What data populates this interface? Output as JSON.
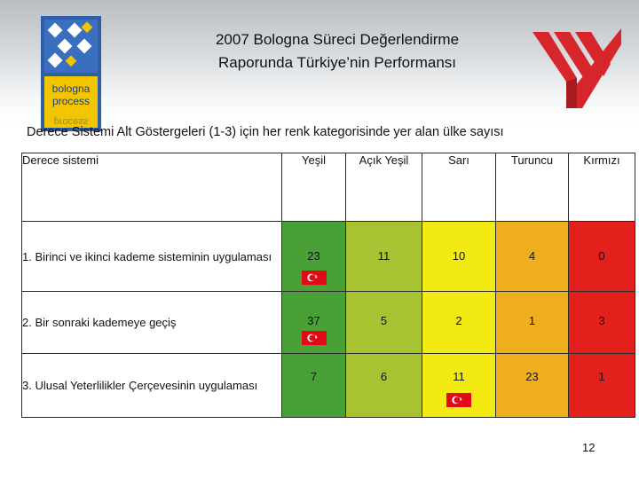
{
  "slide": {
    "title_line1": "2007 Bologna Süreci Değerlendirme",
    "title_line2": "Raporunda Türkiye’nin Performansı",
    "subtitle": "Derece Sistemi Alt Göstergeleri (1-3) için her renk kategorisinde yer alan ülke sayısı",
    "page_number": "12"
  },
  "logos": {
    "bologna_text": [
      "bologna",
      "process"
    ],
    "yok_logo_color": "#d6262b"
  },
  "table": {
    "corner_header": "Derece sistemi",
    "columns": [
      {
        "label": "Yeşil",
        "color": "#49a037"
      },
      {
        "label": "Açık Yeşil",
        "color": "#a7c332"
      },
      {
        "label": "Sarı",
        "color": "#f3ea14"
      },
      {
        "label": "Turuncu",
        "color": "#eeae1e"
      },
      {
        "label": "Kırmızı",
        "color": "#e3201b"
      }
    ],
    "rows": [
      {
        "label": "1. Birinci ve ikinci kademe sisteminin uygulaması",
        "values": [
          "23",
          "11",
          "10",
          "4",
          "0"
        ],
        "turkey_flag_column": "Yeşil"
      },
      {
        "label": "2. Bir sonraki kademeye geçiş",
        "values": [
          "37",
          "5",
          "2",
          "1",
          "3"
        ],
        "turkey_flag_column": "Yeşil"
      },
      {
        "label": "3. Ulusal Yeterlilikler Çerçevesinin uygulaması",
        "values": [
          "7",
          "6",
          "11",
          "23",
          "1"
        ],
        "turkey_flag_column": "Sarı"
      }
    ]
  },
  "icons": {
    "flag": "turkey-flag-icon"
  }
}
